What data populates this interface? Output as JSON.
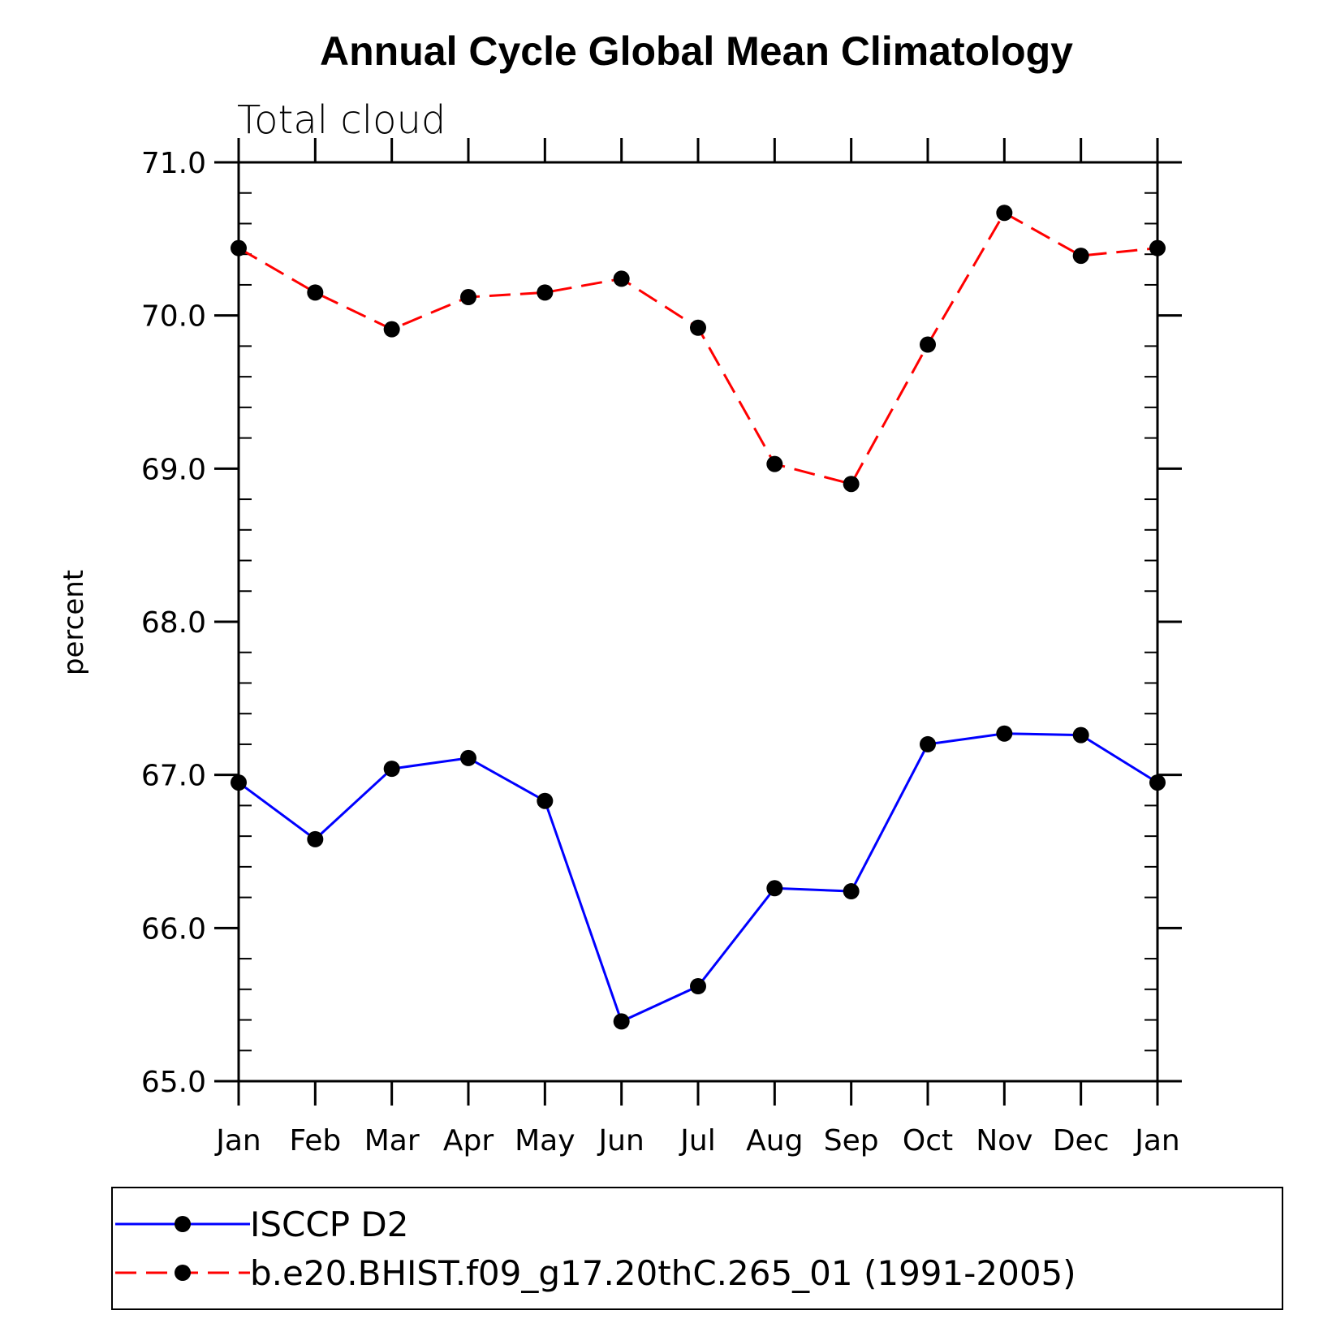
{
  "chart_data": {
    "type": "line",
    "title": "Annual Cycle Global Mean Climatology",
    "subtitle": "Total cloud",
    "xlabel": "",
    "ylabel": "percent",
    "categories": [
      "Jan",
      "Feb",
      "Mar",
      "Apr",
      "May",
      "Jun",
      "Jul",
      "Aug",
      "Sep",
      "Oct",
      "Nov",
      "Dec",
      "Jan"
    ],
    "ylim": [
      65.0,
      71.0
    ],
    "yticks": [
      "65.0",
      "66.0",
      "67.0",
      "68.0",
      "69.0",
      "70.0",
      "71.0"
    ],
    "series": [
      {
        "name": "ISCCP D2",
        "color": "#0000ff",
        "dash": "solid",
        "marker": "filled-circle",
        "values": [
          66.95,
          66.58,
          67.04,
          67.11,
          66.83,
          65.39,
          65.62,
          66.26,
          66.24,
          67.2,
          67.27,
          67.26,
          66.95
        ]
      },
      {
        "name": "b.e20.BHIST.f09_g17.20thC.265_01 (1991-2005)",
        "color": "#ff0000",
        "dash": "dashed",
        "marker": "filled-circle",
        "values": [
          70.44,
          70.15,
          69.91,
          70.12,
          70.15,
          70.24,
          69.92,
          69.03,
          68.9,
          69.81,
          70.67,
          70.39,
          70.44
        ]
      }
    ],
    "legend": "bottom",
    "grid": false
  }
}
